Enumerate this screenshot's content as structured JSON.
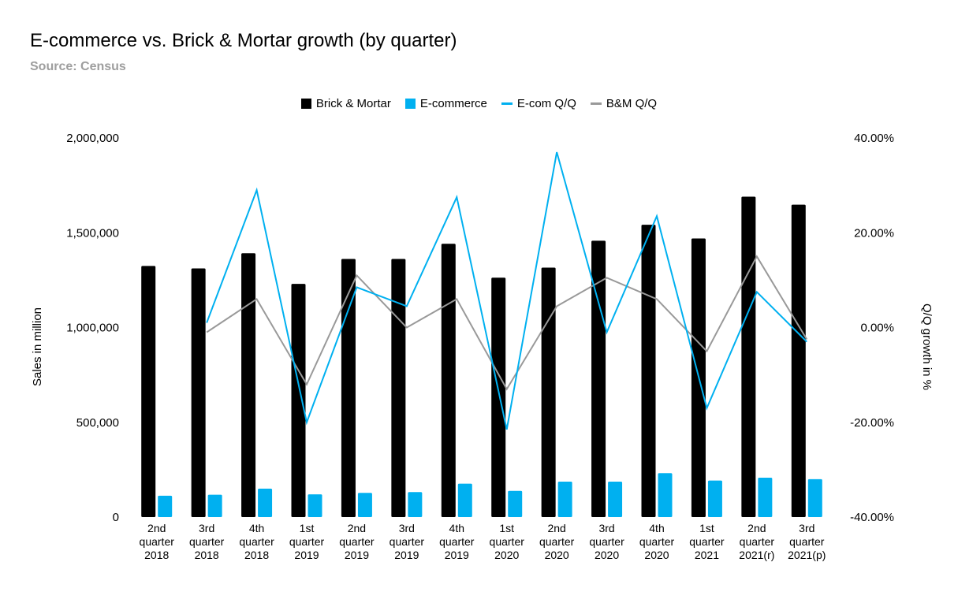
{
  "chart_data": {
    "type": "bar",
    "title": "E-commerce vs. Brick & Mortar growth (by quarter)",
    "subtitle": "Source: Census",
    "categories": [
      [
        "2nd",
        "quarter",
        "2018"
      ],
      [
        "3rd",
        "quarter",
        "2018"
      ],
      [
        "4th",
        "quarter",
        "2018"
      ],
      [
        "1st",
        "quarter",
        "2019"
      ],
      [
        "2nd",
        "quarter",
        "2019"
      ],
      [
        "3rd",
        "quarter",
        "2019"
      ],
      [
        "4th",
        "quarter",
        "2019"
      ],
      [
        "1st",
        "quarter",
        "2020"
      ],
      [
        "2nd",
        "quarter",
        "2020"
      ],
      [
        "3rd",
        "quarter",
        "2020"
      ],
      [
        "4th",
        "quarter",
        "2020"
      ],
      [
        "1st",
        "quarter",
        "2021"
      ],
      [
        "2nd",
        "quarter",
        "2021(r)"
      ],
      [
        "3rd",
        "quarter",
        "2021(p)"
      ]
    ],
    "series": [
      {
        "name": "Brick & Mortar",
        "type": "bar",
        "axis": "left",
        "color": "#000000",
        "values": [
          1325000,
          1312000,
          1392000,
          1230000,
          1362000,
          1362000,
          1442000,
          1263000,
          1316000,
          1458000,
          1542000,
          1470000,
          1690000,
          1648000
        ]
      },
      {
        "name": "E-commerce",
        "type": "bar",
        "axis": "left",
        "color": "#00b0f0",
        "values": [
          113000,
          118000,
          150000,
          120000,
          128000,
          132000,
          176000,
          138000,
          187000,
          187000,
          232000,
          193000,
          208000,
          200000
        ]
      },
      {
        "name": "E-com Q/Q",
        "type": "line",
        "axis": "right",
        "color": "#00b0f0",
        "values": [
          null,
          1.0,
          29.0,
          -20.0,
          8.5,
          4.5,
          27.5,
          -21.5,
          37.0,
          -1.0,
          23.5,
          -17.0,
          7.5,
          -3.0
        ]
      },
      {
        "name": "B&M Q/Q",
        "type": "line",
        "axis": "right",
        "color": "#999999",
        "values": [
          null,
          -1.0,
          6.0,
          -12.0,
          11.0,
          0.0,
          6.0,
          -13.0,
          4.5,
          10.5,
          6.0,
          -5.0,
          15.0,
          -2.5
        ]
      }
    ],
    "y_left": {
      "label": "Sales in million",
      "ylim": [
        0,
        2000000
      ],
      "ticks": [
        0,
        500000,
        1000000,
        1500000,
        2000000
      ],
      "tick_labels": [
        "0",
        "500,000",
        "1,000,000",
        "1,500,000",
        "2,000,000"
      ]
    },
    "y_right": {
      "label": "Q/Q growth in %",
      "ylim": [
        -40,
        40
      ],
      "ticks": [
        -40,
        -20,
        0,
        20,
        40
      ],
      "tick_labels": [
        "-40.00%",
        "-20.00%",
        "0.00%",
        "20.00%",
        "40.00%"
      ]
    },
    "grid": false,
    "legend_position": "top-center"
  }
}
